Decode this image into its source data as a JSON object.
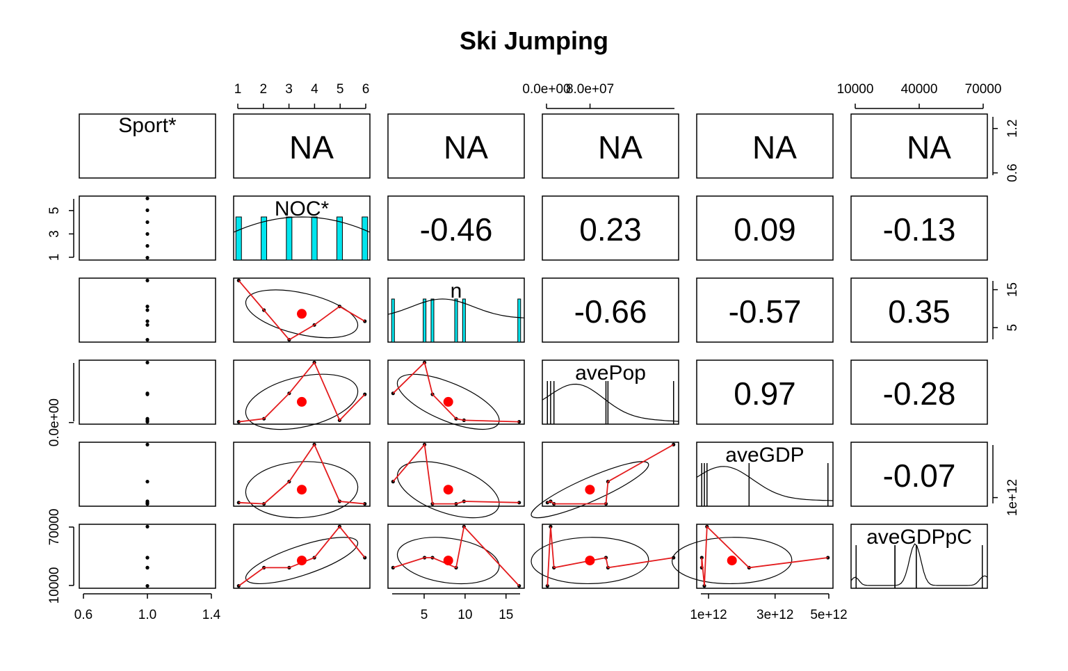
{
  "chart_data": {
    "type": "scatter",
    "title": "Ski Jumping",
    "variables": [
      "Sport*",
      "NOC*",
      "n",
      "avePop",
      "aveGDP",
      "aveGDPpC"
    ],
    "observations": {
      "Sport": [
        1,
        1,
        1,
        1,
        1,
        1
      ],
      "NOC": [
        1,
        2,
        3,
        4,
        5,
        6
      ],
      "n": [
        17,
        9,
        1,
        5,
        10,
        6
      ],
      "avePop": [
        2000000,
        8500000,
        62000000,
        127000000,
        5200000,
        60000000
      ],
      "aveGDP": [
        300000000000,
        200000000000,
        2000000000000,
        5000000000000,
        400000000000,
        200000000000
      ],
      "aveGDPpC": [
        7000,
        27000,
        27000,
        38000,
        72000,
        38000
      ]
    },
    "upper_panels": {
      "row1": [
        "NA",
        "NA",
        "NA",
        "NA",
        "NA"
      ],
      "row2": [
        "-0.46",
        "0.23",
        "0.09",
        "-0.13"
      ],
      "row3": [
        "-0.66",
        "-0.57",
        "0.35"
      ],
      "row4": [
        "0.97",
        "-0.28"
      ],
      "row5": [
        "-0.07"
      ]
    },
    "axis_ticks": {
      "top_NOC": [
        "1",
        "2",
        "3",
        "4",
        "5",
        "6"
      ],
      "top_avePop": [
        "0.0e+00",
        "8.0e+07"
      ],
      "top_aveGDPpC": [
        "10000",
        "40000",
        "70000"
      ],
      "right_Sport": [
        "0.6",
        "1.2"
      ],
      "right_n": [
        "5",
        "15"
      ],
      "right_aveGDP": [
        "1e+12"
      ],
      "left_NOC": [
        "1",
        "3",
        "5"
      ],
      "left_avePop": [
        "0.0e+00"
      ],
      "left_aveGDPpC": [
        "10000",
        "70000"
      ],
      "bottom_Sport": [
        "0.6",
        "1.0",
        "1.4"
      ],
      "bottom_n": [
        "5",
        "10",
        "15"
      ],
      "bottom_aveGDP": [
        "1e+12",
        "3e+12",
        "5e+12"
      ]
    },
    "histogram_color": "#00e5ee",
    "smoother_color": "#e31a1c",
    "point_color": "#000000",
    "grid": false
  }
}
